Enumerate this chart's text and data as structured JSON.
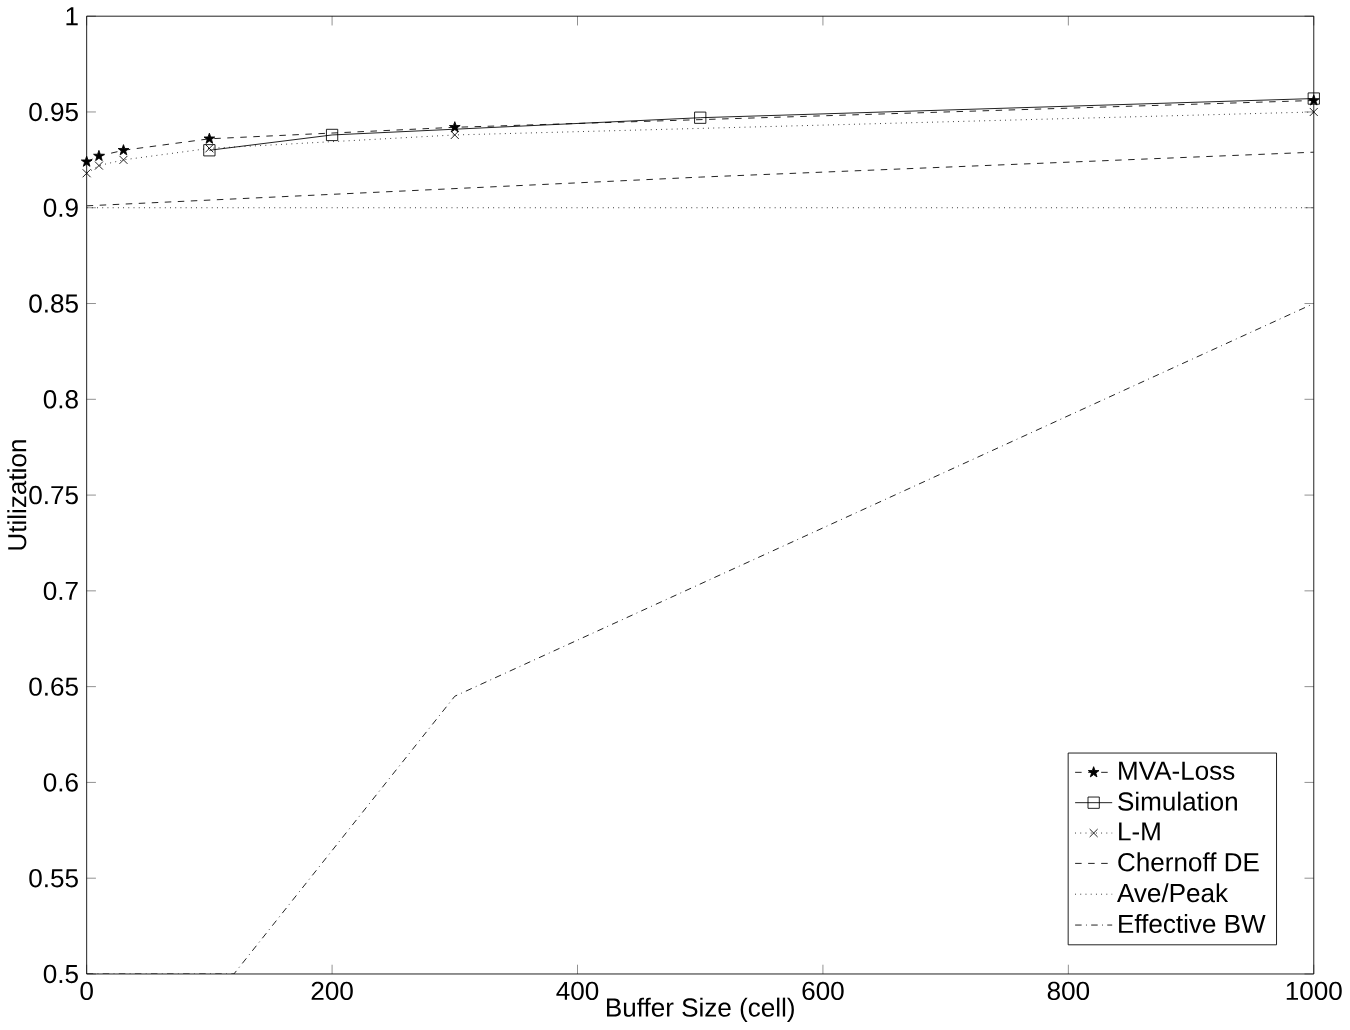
{
  "chart_data": {
    "type": "line",
    "xlabel": "Buffer Size (cell)",
    "ylabel": "Utilization",
    "xlim": [
      0,
      1000
    ],
    "ylim": [
      0.5,
      1
    ],
    "xticks": [
      0,
      200,
      400,
      600,
      800,
      1000
    ],
    "yticks": [
      0.5,
      0.55,
      0.6,
      0.65,
      0.7,
      0.75,
      0.8,
      0.85,
      0.9,
      0.95,
      1
    ],
    "legend": "bottom right",
    "grid": false,
    "series": [
      {
        "name": "MVA-Loss",
        "color": "#000000",
        "marker": "star",
        "line_style": "dashed",
        "x": [
          0,
          10,
          30,
          100,
          300,
          1000
        ],
        "values": [
          0.924,
          0.927,
          0.93,
          0.936,
          0.942,
          0.956
        ]
      },
      {
        "name": "Simulation",
        "color": "#000000",
        "marker": "square",
        "line_style": "solid",
        "x": [
          100,
          200,
          500,
          1000
        ],
        "values": [
          0.93,
          0.938,
          0.947,
          0.957
        ]
      },
      {
        "name": "L-M",
        "color": "#000000",
        "marker": "cross",
        "line_style": "dotted",
        "x": [
          0,
          10,
          30,
          100,
          300,
          1000
        ],
        "values": [
          0.918,
          0.922,
          0.925,
          0.931,
          0.938,
          0.95
        ]
      },
      {
        "name": "Chernoff DE",
        "color": "#000000",
        "marker": "none",
        "line_style": "dashed",
        "x": [
          0,
          500,
          1000
        ],
        "values": [
          0.901,
          0.916,
          0.929
        ]
      },
      {
        "name": "Ave/Peak",
        "color": "#000000",
        "marker": "none",
        "line_style": "dotted",
        "x": [
          0,
          1000
        ],
        "values": [
          0.9,
          0.9
        ]
      },
      {
        "name": "Effective BW",
        "color": "#000000",
        "marker": "none",
        "line_style": "dashdot",
        "x": [
          0,
          120,
          300,
          1000
        ],
        "values": [
          0.5,
          0.5,
          0.645,
          0.85
        ]
      }
    ]
  }
}
